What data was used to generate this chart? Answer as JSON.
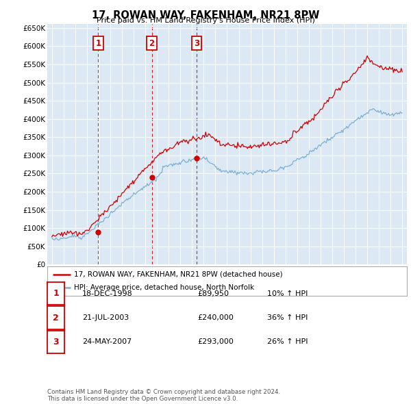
{
  "title": "17, ROWAN WAY, FAKENHAM, NR21 8PW",
  "subtitle": "Price paid vs. HM Land Registry's House Price Index (HPI)",
  "ylabel_ticks": [
    "£0",
    "£50K",
    "£100K",
    "£150K",
    "£200K",
    "£250K",
    "£300K",
    "£350K",
    "£400K",
    "£450K",
    "£500K",
    "£550K",
    "£600K",
    "£650K"
  ],
  "ytick_vals": [
    0,
    50000,
    100000,
    150000,
    200000,
    250000,
    300000,
    350000,
    400000,
    450000,
    500000,
    550000,
    600000,
    650000
  ],
  "xlim_start": 1994.6,
  "xlim_end": 2025.4,
  "ylim_top": 660000,
  "fig_bg": "#ffffff",
  "plot_bg": "#dce9f5",
  "grid_color": "#ffffff",
  "sale_color": "#cc0000",
  "hpi_color": "#7ab0d4",
  "vline_color": "#cc0000",
  "transactions": [
    {
      "label": "1",
      "date": 1998.96,
      "price": 89950
    },
    {
      "label": "2",
      "date": 2003.55,
      "price": 240000
    },
    {
      "label": "3",
      "date": 2007.39,
      "price": 293000
    }
  ],
  "legend_sale_label": "17, ROWAN WAY, FAKENHAM, NR21 8PW (detached house)",
  "legend_hpi_label": "HPI: Average price, detached house, North Norfolk",
  "table_rows": [
    {
      "num": "1",
      "date": "18-DEC-1998",
      "price": "£89,950",
      "change": "10% ↑ HPI"
    },
    {
      "num": "2",
      "date": "21-JUL-2003",
      "price": "£240,000",
      "change": "36% ↑ HPI"
    },
    {
      "num": "3",
      "date": "24-MAY-2007",
      "price": "£293,000",
      "change": "26% ↑ HPI"
    }
  ],
  "footnote": "Contains HM Land Registry data © Crown copyright and database right 2024.\nThis data is licensed under the Open Government Licence v3.0."
}
